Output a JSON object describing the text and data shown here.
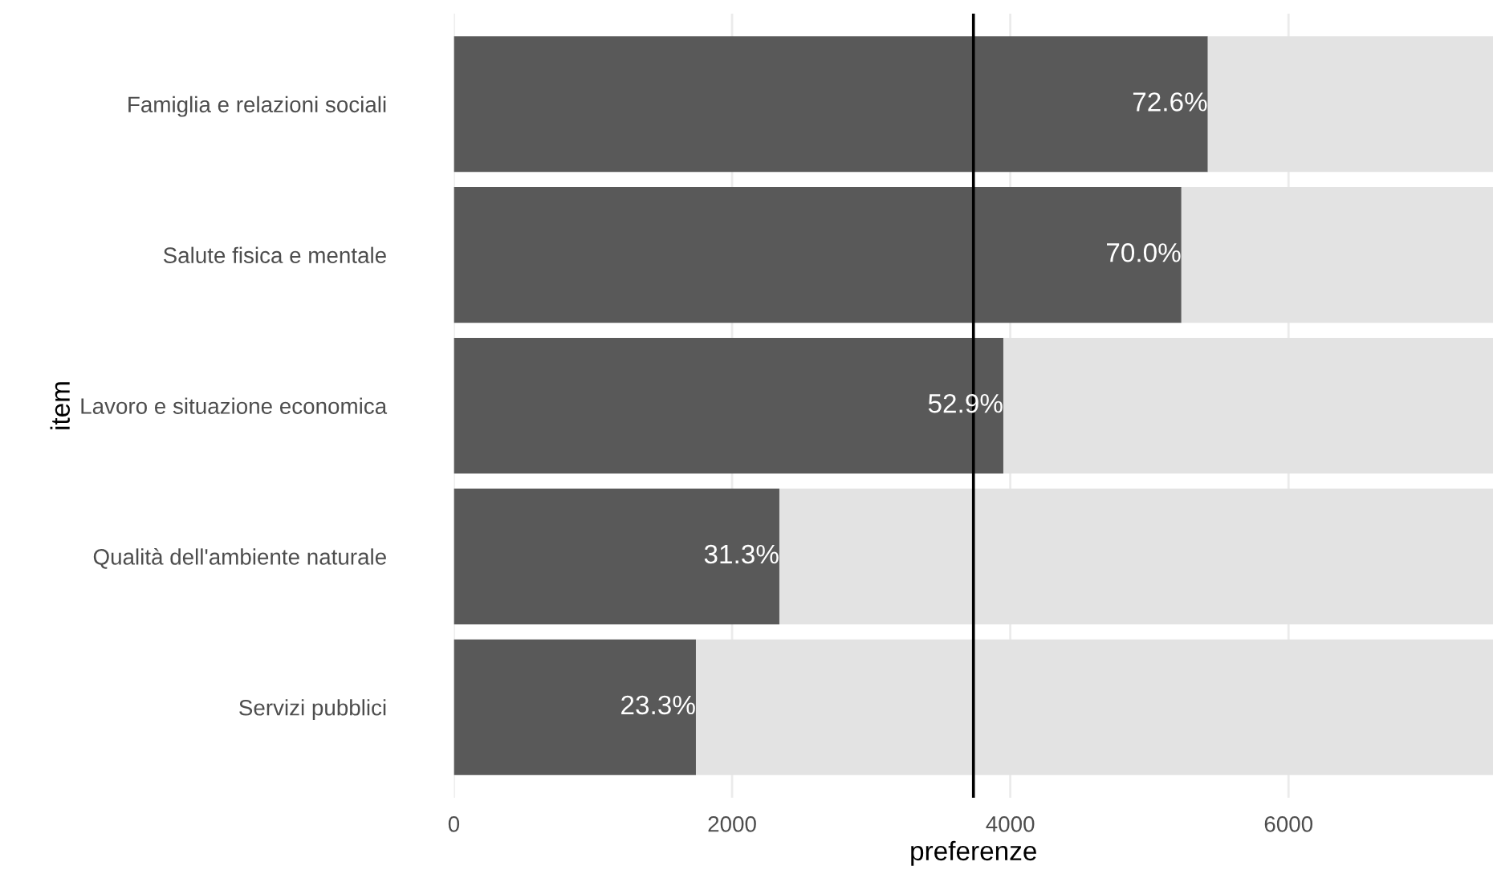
{
  "chart_data": {
    "type": "bar",
    "orientation": "horizontal",
    "stacked": true,
    "categories": [
      "Famiglia e relazioni sociali",
      "Salute fisica e mentale",
      "Lavoro e situazione economica",
      "Qualità dell'ambiente naturale",
      "Servizi pubblici"
    ],
    "series": [
      {
        "color": "#595959",
        "values": [
          5420,
          5230,
          3950,
          2340,
          1740
        ]
      },
      {
        "color": "#e3e3e3",
        "values": [
          2050,
          2240,
          3520,
          5130,
          5730
        ]
      }
    ],
    "annotations": [
      {
        "text": "72.6%",
        "x": 5420,
        "y": "Famiglia e relazioni sociali"
      },
      {
        "text": "70.0%",
        "x": 5230,
        "y": "Salute fisica e mentale"
      },
      {
        "text": "52.9%",
        "x": 3950,
        "y": "Lavoro e situazione economica"
      },
      {
        "text": "31.3%",
        "x": 2340,
        "y": "Qualità dell'ambiente naturale"
      },
      {
        "text": "23.3%",
        "x": 1740,
        "y": "Servizi pubblici"
      }
    ],
    "xlabel": "preferenze",
    "ylabel": "item",
    "xlim": [
      0,
      7470
    ],
    "xticks": [
      0,
      2000,
      4000,
      6000
    ],
    "grid": "x",
    "ref_lines": [
      {
        "axis": "x",
        "value": 3735,
        "color": "#000000"
      }
    ]
  }
}
